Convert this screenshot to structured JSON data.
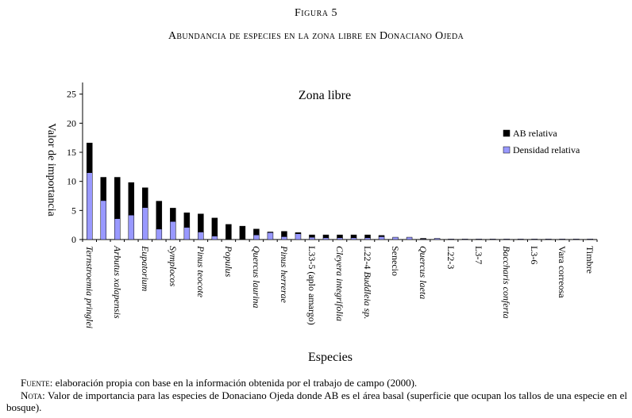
{
  "figure": {
    "label": "Figura 5",
    "title": "Abundancia de especies en la zona libre en Donaciano Ojeda"
  },
  "footer": {
    "source_label": "Fuente",
    "source_text": ": elaboración propia con base en la información obtenida por el trabajo de campo (2000).",
    "note_label": "Nota",
    "note_text": ": Valor de importancia para las especies de Donaciano Ojeda donde AB es el área basal (superficie que ocupan los tallos de una especie en el bosque)."
  },
  "chart_data": {
    "type": "bar",
    "stacked": true,
    "title": "Zona libre",
    "xlabel": "Especies",
    "ylabel": "Valor de importancia",
    "ylim": [
      0,
      27
    ],
    "yticks": [
      0,
      5,
      10,
      15,
      20,
      25
    ],
    "legend_position": "top-right",
    "categories": [
      "Ternstroemia pringlei",
      "",
      "Arbutus xalapensis",
      "",
      "Eupatorium",
      "",
      "Symplocos",
      "",
      "Pinus teocote",
      "",
      "Populus",
      "",
      "Quercus laurina",
      "",
      "Pinus herrerae",
      "",
      "L33-5 (aplo amargo)",
      "",
      "Cleyera integrifolia",
      "",
      "L22-4 Buddleia sp.",
      "",
      "Senecio",
      "",
      "Quercus laeta",
      "",
      "L22-3",
      "",
      "L3-7",
      "",
      "Baccharis conferta",
      "",
      "L3-6",
      "",
      "Vara correosa",
      "",
      "Timbre"
    ],
    "italic_labels": [
      "Ternstroemia pringlei",
      "Arbutus xalapensis",
      "Eupatorium",
      "Symplocos",
      "Pinus teocote",
      "Populus",
      "Quercus laurina",
      "Pinus herrerae",
      "Cleyera integrifolia",
      "Buddleia sp.",
      "Quercus laeta",
      "Baccharis conferta"
    ],
    "series": [
      {
        "name": "Densidad relativa",
        "color": "#9999ff",
        "values": [
          11.5,
          6.7,
          3.6,
          4.2,
          5.5,
          1.8,
          3.1,
          2.1,
          1.3,
          0.6,
          0,
          0,
          0.8,
          1.2,
          0.5,
          1.0,
          0.4,
          0.3,
          0.3,
          0.3,
          0.3,
          0.5,
          0.4,
          0.4,
          0.1,
          0.2,
          0.1,
          0.1,
          0.1,
          0.1,
          0.1,
          0.1,
          0.1,
          0.1,
          0.1,
          0.1,
          0.1
        ]
      },
      {
        "name": "AB relativa",
        "color": "#000000",
        "values": [
          5.1,
          4.0,
          7.1,
          5.6,
          3.4,
          4.8,
          2.3,
          2.5,
          3.1,
          3.1,
          2.6,
          2.3,
          1.0,
          0.1,
          0.9,
          0.2,
          0.4,
          0.5,
          0.5,
          0.5,
          0.5,
          0.2,
          0,
          0,
          0.1,
          0,
          0,
          0,
          0,
          0,
          0,
          0,
          0,
          0,
          0,
          0,
          0
        ]
      }
    ]
  }
}
